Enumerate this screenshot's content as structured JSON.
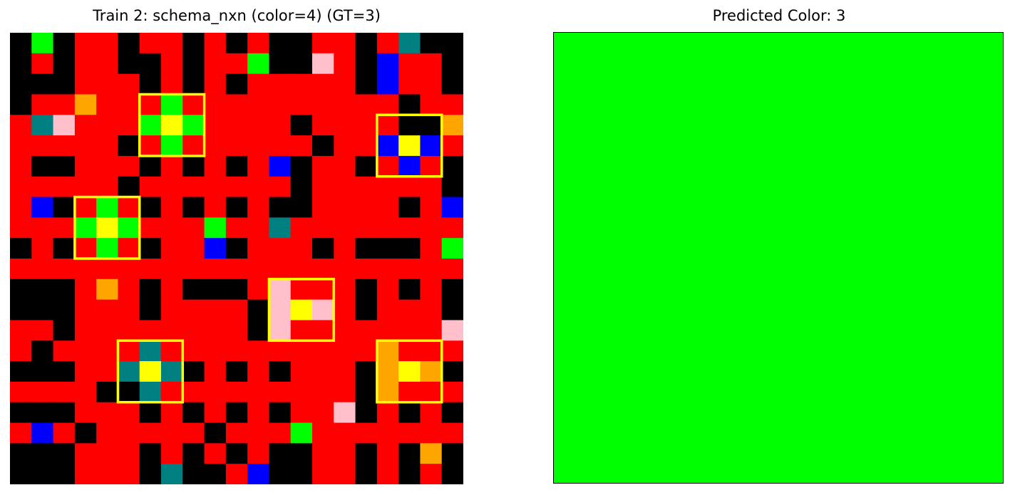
{
  "left_panel": {
    "title": "Train 2: schema_nxn (color=4) (GT=3)",
    "grid": [
      "KGKRRKRRKRKRKKRRKRTKK",
      "KRKRRKKRKRRGKKPRKBRRK",
      "KKKRRRKRKRKRRRRRKBRRK",
      "KRRORRRGRRRRRRRRRRKRR",
      "RTPRRRGYGRRRRKRRRRKKO",
      "RRRRRKRGRRRRRRKRRBYBRR",
      "RKKRRRKRKRKRBKRRKRBRK",
      "RRRRRKRRRRRRRKRRRRRRK",
      "RBKRGRKRKRKRKKRRRRKRB",
      "RRRGYGRRRGRRTRRRRRRRR",
      "KRKRGRKRRBKRRRKRKKKRG",
      "RRRRRRRRRRRRRRRRRRRRR",
      "KKKRORKRKKKRPRRRKRKRK",
      "KKKRRRKRRRRKPYPRKRRRK",
      "RRKRRRRRRRRKPRRRRRRRP",
      "RKRRRRTRRRRRRRRRRORRR",
      "KKKRRTYTKRKRKRRRKOYOKK",
      "RRRRKKTRRRRRRRRRKORRR",
      "KKKRRRKRKRKRKRRPKRKRK",
      "RBRKRRRRRKRRRGRRRRRRR",
      "KKKRRRKRKRKRKKRRKRKOK",
      "KKKRRRKTKKRBKKRRKRKRK"
    ],
    "palette": {
      "K": "#000000",
      "R": "#ff0000",
      "G": "#00ff00",
      "B": "#0000ff",
      "Y": "#ffff00",
      "O": "#ffa500",
      "P": "#ffc0cb",
      "T": "#008080"
    },
    "highlight_color": "#ffff00"
  },
  "right_panel": {
    "title": "Predicted Color: 3",
    "fill_color": "#00ff00"
  }
}
